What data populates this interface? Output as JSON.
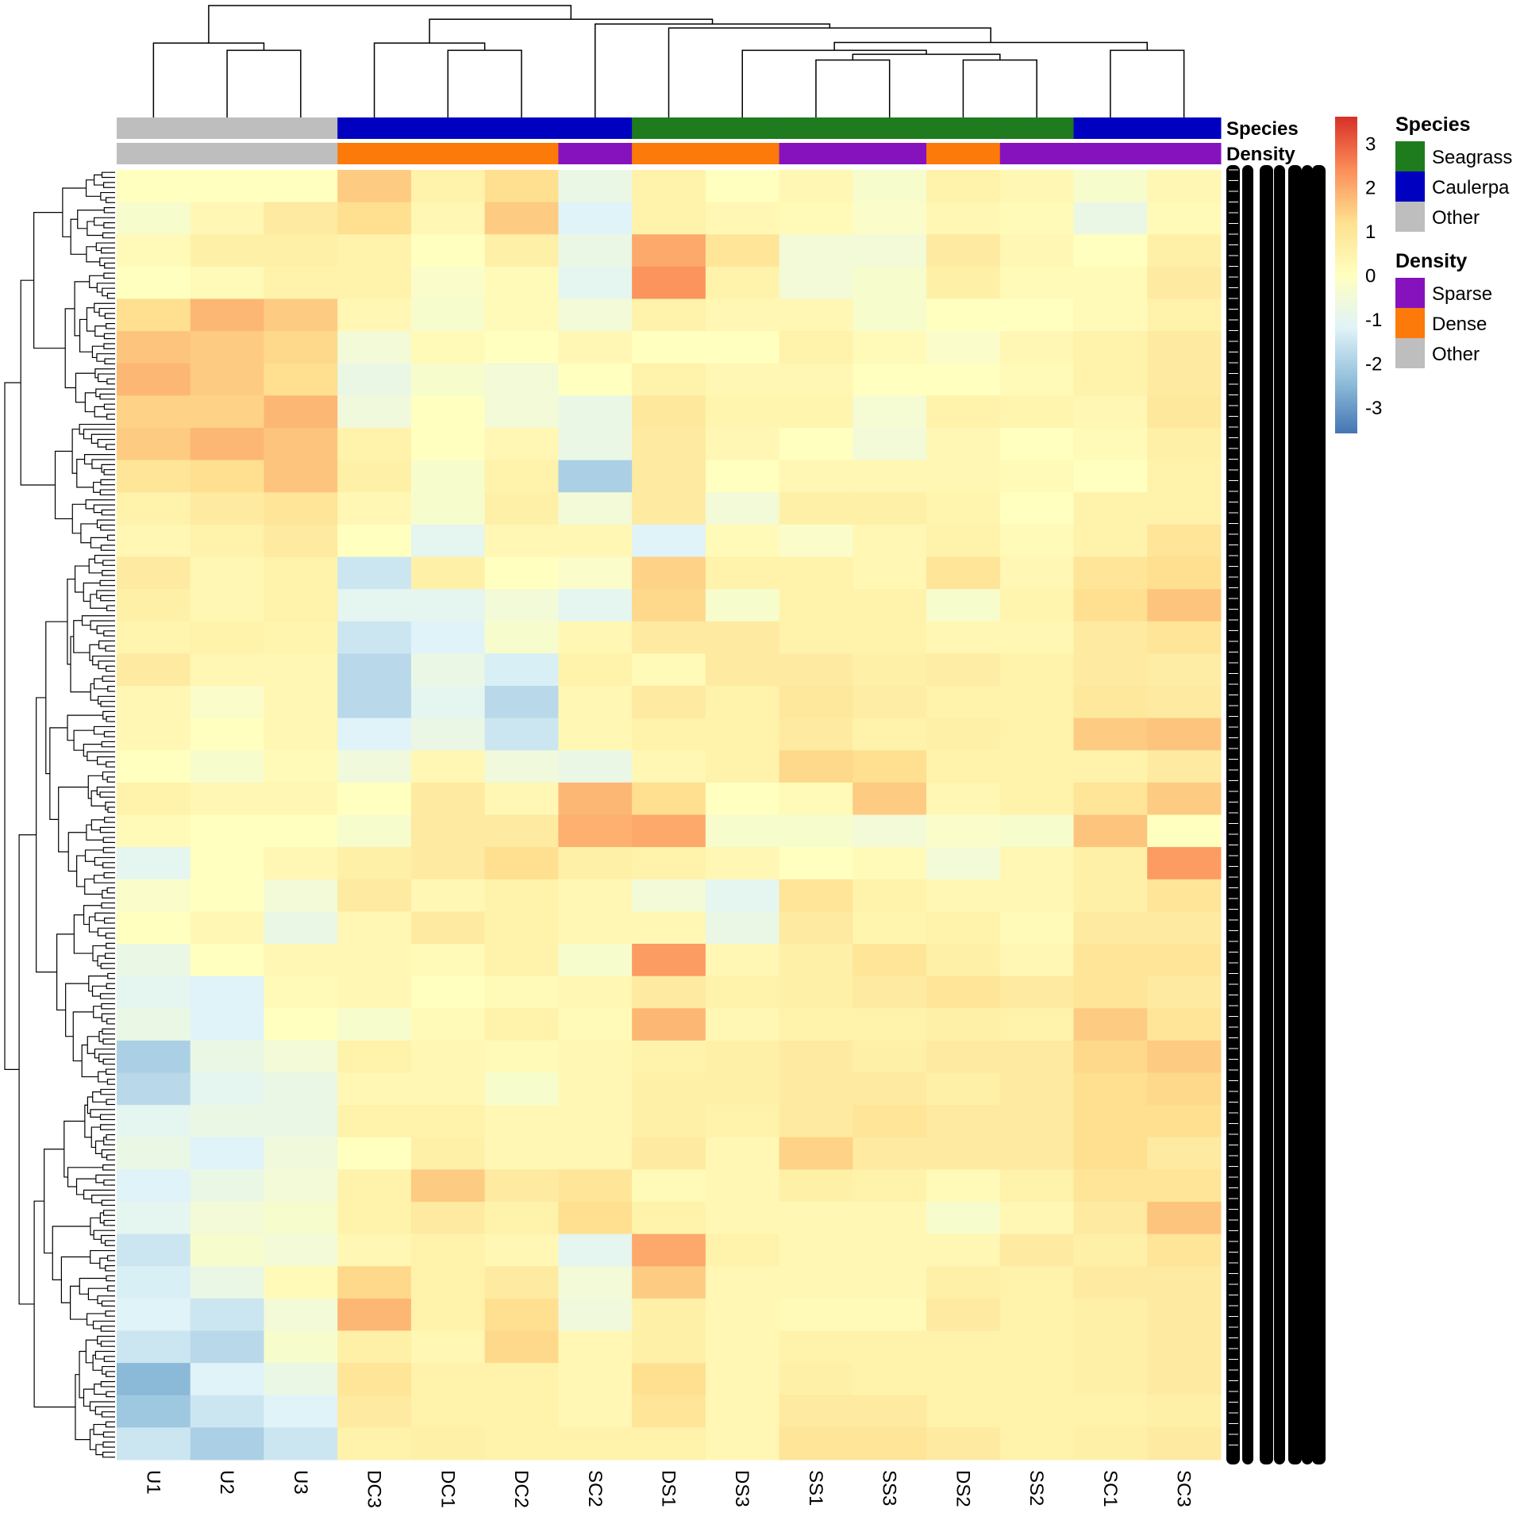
{
  "chart_data": {
    "type": "heatmap",
    "title": "",
    "columns": [
      "U1",
      "U2",
      "U3",
      "DC3",
      "DC1",
      "DC2",
      "SC2",
      "DS1",
      "DS3",
      "SS1",
      "SS3",
      "DS2",
      "SS2",
      "SC1",
      "SC3"
    ],
    "row_label_prefix": "Otu",
    "value_range": [
      -3.6,
      3.6
    ],
    "color_scale": {
      "stops": [
        "#4575B4",
        "#91BFDB",
        "#E0F3F8",
        "#FFFFBF",
        "#FEE090",
        "#FC8D59",
        "#D73027"
      ],
      "ticks": [
        3,
        2,
        1,
        0,
        -1,
        -2,
        -3
      ]
    },
    "values": [
      [
        0,
        0,
        0,
        1.5,
        0.5,
        1.2,
        -0.8,
        0.5,
        0,
        0.3,
        -0.3,
        0.5,
        0.3,
        -0.3,
        0.3
      ],
      [
        -0.3,
        0.3,
        0.8,
        1.2,
        0.3,
        1.5,
        -1.2,
        0.5,
        0.3,
        0.2,
        -0.2,
        0.3,
        0.2,
        -0.8,
        0.2
      ],
      [
        0.2,
        0.6,
        0.6,
        0.5,
        0,
        0.6,
        -0.8,
        2.0,
        1.0,
        -0.5,
        -0.5,
        0.8,
        0.3,
        0,
        0.6
      ],
      [
        0,
        0.2,
        0.5,
        0.5,
        -0.2,
        0.2,
        -1.0,
        2.3,
        0.5,
        -0.5,
        -0.3,
        0.6,
        0.2,
        0.2,
        0.8
      ],
      [
        1.2,
        1.8,
        1.5,
        0.3,
        -0.3,
        0.2,
        -0.5,
        0.5,
        0.3,
        0.3,
        -0.3,
        0,
        0,
        0.2,
        0.5
      ],
      [
        1.6,
        1.5,
        1.3,
        -0.5,
        0.2,
        0,
        0.3,
        0,
        0,
        0.5,
        0.2,
        -0.2,
        0.3,
        0.5,
        0.8
      ],
      [
        1.8,
        1.5,
        1.2,
        -0.8,
        -0.3,
        -0.5,
        0,
        0.5,
        0.3,
        0.3,
        0,
        0,
        0.2,
        0.5,
        0.8
      ],
      [
        1.4,
        1.4,
        1.8,
        -0.6,
        0,
        -0.5,
        -0.8,
        0.9,
        0.4,
        0.4,
        -0.4,
        0.5,
        0.4,
        0.3,
        0.9
      ],
      [
        1.5,
        1.8,
        1.6,
        0.5,
        0,
        0.3,
        -0.8,
        0.8,
        0.3,
        0,
        -0.5,
        0.3,
        0,
        0.2,
        0.6
      ],
      [
        1.0,
        1.2,
        1.6,
        0.6,
        -0.3,
        0.5,
        -2.0,
        0.8,
        0,
        0.3,
        0.3,
        0.3,
        0.2,
        0,
        0.5
      ],
      [
        0.5,
        0.8,
        1.0,
        0.3,
        -0.3,
        0.6,
        -0.5,
        0.8,
        -0.5,
        0.6,
        0.6,
        0.4,
        0,
        0.5,
        0.5
      ],
      [
        0.3,
        0.5,
        0.8,
        0,
        -1.0,
        0.3,
        0.3,
        -1.2,
        0.2,
        -0.2,
        0.3,
        0.5,
        0.2,
        0.5,
        1.0
      ],
      [
        0.8,
        0.3,
        0.5,
        -1.5,
        0.6,
        0,
        -0.2,
        1.4,
        0.5,
        0.5,
        0.3,
        1.0,
        0.3,
        1.0,
        1.2
      ],
      [
        0.6,
        0.3,
        0.5,
        -1.0,
        -1.0,
        -0.5,
        -1.0,
        1.3,
        -0.3,
        0.5,
        0.5,
        -0.3,
        0.4,
        1.2,
        1.6
      ],
      [
        0.4,
        0.5,
        0.4,
        -1.5,
        -1.2,
        -0.3,
        0.3,
        0.8,
        0.8,
        0.5,
        0.5,
        0.3,
        0.3,
        0.8,
        1.0
      ],
      [
        0.8,
        0.3,
        0.3,
        -1.8,
        -0.8,
        -1.3,
        0.5,
        0.2,
        0.8,
        0.8,
        0.6,
        0.7,
        0.5,
        0.8,
        0.7
      ],
      [
        0.3,
        -0.2,
        0.3,
        -1.8,
        -1.0,
        -1.8,
        0.3,
        0.8,
        0.5,
        0.9,
        0.7,
        0.5,
        0.5,
        0.9,
        0.8
      ],
      [
        0.3,
        0,
        0.3,
        -1.2,
        -0.8,
        -1.5,
        0.3,
        0.5,
        0.5,
        0.8,
        0.5,
        0.6,
        0.5,
        1.5,
        1.6
      ],
      [
        0,
        -0.3,
        0.2,
        -0.6,
        0.3,
        -0.6,
        -0.8,
        0.3,
        0.5,
        1.3,
        1.2,
        0.5,
        0.5,
        0.5,
        0.8
      ],
      [
        0.5,
        0.3,
        0.3,
        0,
        0.8,
        0.3,
        1.8,
        1.2,
        0,
        0.2,
        1.5,
        0.3,
        0.5,
        1.0,
        1.5
      ],
      [
        0.2,
        0,
        0,
        -0.3,
        0.8,
        0.8,
        1.9,
        2.0,
        -0.3,
        -0.3,
        -0.5,
        -0.2,
        -0.3,
        1.6,
        0
      ],
      [
        -1.0,
        0,
        0.3,
        0.6,
        0.8,
        1.2,
        0.6,
        0.5,
        0.3,
        0,
        0.2,
        -0.5,
        0.3,
        0.6,
        2.2
      ],
      [
        -0.2,
        0,
        -0.5,
        0.8,
        0.3,
        0.5,
        0.3,
        -0.5,
        -1.0,
        1.0,
        0.5,
        0.3,
        0.3,
        0.6,
        1.0
      ],
      [
        0,
        0.3,
        -0.8,
        0.3,
        0.8,
        0.5,
        0.3,
        0.3,
        -0.8,
        0.8,
        0.4,
        0.5,
        0.2,
        0.8,
        0.8
      ],
      [
        -0.8,
        0,
        0.3,
        0.3,
        0.2,
        0.5,
        -0.3,
        2.2,
        0.3,
        0.6,
        1.0,
        0.6,
        0.3,
        1.0,
        1.0
      ],
      [
        -1.0,
        -1.2,
        0.2,
        0.3,
        0,
        0.2,
        0.3,
        0.8,
        0.5,
        0.6,
        0.8,
        1.0,
        0.8,
        1.0,
        0.8
      ],
      [
        -0.8,
        -1.2,
        0,
        -0.3,
        0.2,
        0.5,
        0.2,
        1.8,
        0.3,
        0.5,
        0.5,
        0.6,
        0.5,
        1.5,
        1.0
      ],
      [
        -2.0,
        -0.8,
        -0.5,
        0.5,
        0.3,
        0.2,
        0.3,
        0.5,
        0.6,
        0.8,
        0.6,
        0.8,
        0.8,
        1.3,
        1.5
      ],
      [
        -1.8,
        -1.0,
        -0.8,
        0.3,
        0.3,
        -0.3,
        0.3,
        0.6,
        0.6,
        0.8,
        0.8,
        0.6,
        0.8,
        1.2,
        1.3
      ],
      [
        -1.0,
        -0.8,
        -0.8,
        0.5,
        0.5,
        0.3,
        0.3,
        0.6,
        0.5,
        0.8,
        1.0,
        0.8,
        0.8,
        1.2,
        1.2
      ],
      [
        -0.8,
        -1.2,
        -0.6,
        0,
        0.6,
        0.3,
        0.3,
        0.8,
        0.3,
        1.4,
        0.8,
        0.8,
        0.8,
        1.2,
        0.8
      ],
      [
        -1.2,
        -0.8,
        -0.5,
        0.5,
        1.5,
        0.8,
        1.0,
        0.2,
        0.3,
        0.6,
        0.5,
        0.2,
        0.5,
        1.0,
        1.0
      ],
      [
        -1.0,
        -0.5,
        -0.3,
        0.5,
        0.8,
        0.5,
        1.2,
        0.5,
        0.3,
        0.3,
        0.3,
        -0.3,
        0.3,
        0.8,
        1.6
      ],
      [
        -1.5,
        -0.3,
        -0.5,
        0.3,
        0.5,
        0.3,
        -1.0,
        2.0,
        0.5,
        0.3,
        0.3,
        0.3,
        0.8,
        0.6,
        1.0
      ],
      [
        -1.3,
        -0.8,
        0.2,
        1.3,
        0.5,
        0.8,
        -0.5,
        1.5,
        0.3,
        0.3,
        0.3,
        0.6,
        0.5,
        0.8,
        0.8
      ],
      [
        -1.2,
        -1.5,
        -0.5,
        1.8,
        0.5,
        1.2,
        -0.6,
        0.6,
        0.3,
        0.2,
        0.2,
        0.8,
        0.5,
        0.6,
        0.8
      ],
      [
        -1.5,
        -1.8,
        -0.3,
        0.6,
        0.3,
        1.3,
        0.3,
        0.6,
        0.3,
        0.5,
        0.5,
        0.5,
        0.5,
        0.6,
        0.8
      ],
      [
        -2.5,
        -1.2,
        -0.8,
        1.0,
        0.5,
        0.5,
        0.3,
        1.2,
        0.3,
        0.6,
        0.5,
        0.5,
        0.5,
        0.6,
        0.8
      ],
      [
        -2.2,
        -1.5,
        -1.2,
        0.8,
        0.5,
        0.5,
        0.3,
        1.0,
        0.3,
        0.8,
        0.8,
        0.5,
        0.5,
        0.5,
        0.6
      ],
      [
        -1.5,
        -2.0,
        -1.5,
        0.5,
        0.6,
        0.5,
        0.5,
        0.5,
        0.3,
        1.0,
        1.0,
        0.8,
        0.5,
        0.6,
        0.8
      ]
    ],
    "column_dendrogram": [
      [
        0,
        [
          1,
          2,
          0.6
        ],
        0.665
      ],
      [
        [
          3,
          [
            4,
            5,
            0.6
          ],
          0.665
        ],
        [
          6,
          [
            7,
            [
              [
                8,
                [
                  [
                    9,
                    10,
                    0.513
                  ],
                  [
                    11,
                    12,
                    0.513
                  ],
                  0.565
                ],
                0.6
              ],
              [
                13,
                14,
                0.6
              ],
              0.67
            ],
            0.8
          ],
          0.835
        ],
        0.878
      ],
      1.0
    ],
    "annotations": {
      "Species": [
        "Other",
        "Other",
        "Other",
        "Caulerpa",
        "Caulerpa",
        "Caulerpa",
        "Caulerpa",
        "Seagrass",
        "Seagrass",
        "Seagrass",
        "Seagrass",
        "Seagrass",
        "Seagrass",
        "Caulerpa",
        "Caulerpa"
      ],
      "Density": [
        "Other",
        "Other",
        "Other",
        "Dense",
        "Dense",
        "Dense",
        "Sparse",
        "Dense",
        "Dense",
        "Sparse",
        "Sparse",
        "Dense",
        "Sparse",
        "Sparse",
        "Sparse"
      ]
    }
  },
  "legend": {
    "species_title": "Species",
    "species": [
      {
        "label": "Seagrass",
        "color": "#1E7B1E"
      },
      {
        "label": "Caulerpa",
        "color": "#0000C0"
      },
      {
        "label": "Other",
        "color": "#BEBEBE"
      }
    ],
    "density_title": "Density",
    "density": [
      {
        "label": "Sparse",
        "color": "#8612BE"
      },
      {
        "label": "Dense",
        "color": "#FC7A0A"
      },
      {
        "label": "Other",
        "color": "#BEBEBE"
      }
    ]
  },
  "annotation_labels": {
    "species": "Species",
    "density": "Density"
  }
}
